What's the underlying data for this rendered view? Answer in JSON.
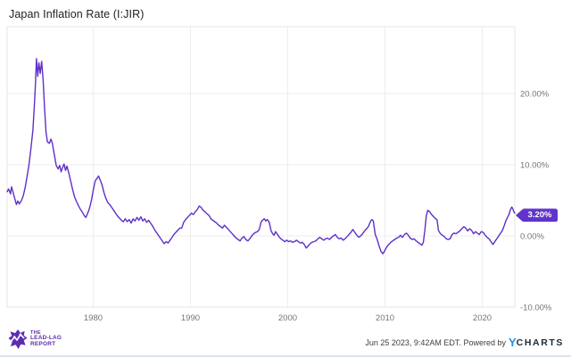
{
  "header": {
    "title": "Japan Inflation Rate (I:JIR)"
  },
  "colors": {
    "line": "#5e30c8",
    "badge_bg": "#6133cc",
    "grid": "#ededed",
    "plot_border": "#e4e4e4",
    "tick_text": "#757575",
    "title_text": "#202124",
    "brand_purple": "#5c2db3",
    "ycharts_blue": "#1e8fea",
    "ycharts_dark": "#1b2b3a",
    "footer_text": "#3d3d3d"
  },
  "chart_data": {
    "type": "line",
    "title": "Japan Inflation Rate (I:JIR)",
    "legend": "none",
    "grid": "on",
    "x_axis": {
      "domain": [
        1971.15,
        2023.35
      ],
      "ticks": [
        1980,
        1990,
        2000,
        2010,
        2020
      ],
      "tick_labels": [
        "1980",
        "1990",
        "2000",
        "2010",
        "2020"
      ]
    },
    "y_axis": {
      "side": "right",
      "domain": [
        -10,
        29.375
      ],
      "ticks": [
        20,
        10,
        0,
        -10
      ],
      "tick_labels": [
        "20.00%",
        "10.00%",
        "0.00%",
        "-10.00%"
      ]
    },
    "last_value_label": "3.20%",
    "series": [
      {
        "name": "Japan Inflation Rate",
        "unit": "percent",
        "points": [
          [
            1971.15,
            6.2
          ],
          [
            1971.3,
            6.6
          ],
          [
            1971.5,
            5.9
          ],
          [
            1971.6,
            6.9
          ],
          [
            1971.75,
            6.2
          ],
          [
            1971.9,
            5.4
          ],
          [
            1972.1,
            4.4
          ],
          [
            1972.25,
            4.9
          ],
          [
            1972.4,
            4.5
          ],
          [
            1972.6,
            4.9
          ],
          [
            1972.8,
            5.6
          ],
          [
            1973.0,
            6.8
          ],
          [
            1973.2,
            8.3
          ],
          [
            1973.4,
            10.0
          ],
          [
            1973.6,
            12.3
          ],
          [
            1973.8,
            14.9
          ],
          [
            1973.95,
            18.3
          ],
          [
            1974.05,
            21.0
          ],
          [
            1974.17,
            24.9
          ],
          [
            1974.3,
            22.4
          ],
          [
            1974.42,
            24.3
          ],
          [
            1974.55,
            22.8
          ],
          [
            1974.7,
            24.5
          ],
          [
            1974.85,
            22.0
          ],
          [
            1975.0,
            17.8
          ],
          [
            1975.15,
            14.5
          ],
          [
            1975.3,
            13.2
          ],
          [
            1975.5,
            13.0
          ],
          [
            1975.65,
            13.6
          ],
          [
            1975.8,
            13.0
          ],
          [
            1976.0,
            11.4
          ],
          [
            1976.2,
            9.9
          ],
          [
            1976.4,
            9.4
          ],
          [
            1976.55,
            9.9
          ],
          [
            1976.7,
            9.0
          ],
          [
            1976.85,
            9.6
          ],
          [
            1977.0,
            10.1
          ],
          [
            1977.15,
            9.2
          ],
          [
            1977.3,
            9.8
          ],
          [
            1977.5,
            8.8
          ],
          [
            1977.7,
            7.6
          ],
          [
            1977.9,
            6.4
          ],
          [
            1978.1,
            5.4
          ],
          [
            1978.3,
            4.8
          ],
          [
            1978.5,
            4.2
          ],
          [
            1978.7,
            3.7
          ],
          [
            1978.9,
            3.3
          ],
          [
            1979.1,
            2.8
          ],
          [
            1979.25,
            2.6
          ],
          [
            1979.4,
            3.1
          ],
          [
            1979.55,
            3.6
          ],
          [
            1979.7,
            4.3
          ],
          [
            1979.85,
            5.2
          ],
          [
            1980.0,
            6.4
          ],
          [
            1980.2,
            7.7
          ],
          [
            1980.4,
            8.1
          ],
          [
            1980.55,
            8.4
          ],
          [
            1980.7,
            7.9
          ],
          [
            1980.9,
            7.2
          ],
          [
            1981.1,
            6.1
          ],
          [
            1981.3,
            5.3
          ],
          [
            1981.5,
            4.7
          ],
          [
            1981.7,
            4.4
          ],
          [
            1981.9,
            4.0
          ],
          [
            1982.1,
            3.6
          ],
          [
            1982.3,
            3.2
          ],
          [
            1982.5,
            2.8
          ],
          [
            1982.7,
            2.5
          ],
          [
            1982.9,
            2.2
          ],
          [
            1983.1,
            2.0
          ],
          [
            1983.3,
            2.4
          ],
          [
            1983.5,
            2.0
          ],
          [
            1983.7,
            2.3
          ],
          [
            1983.9,
            1.8
          ],
          [
            1984.1,
            2.4
          ],
          [
            1984.3,
            2.1
          ],
          [
            1984.5,
            2.6
          ],
          [
            1984.7,
            2.2
          ],
          [
            1984.9,
            2.7
          ],
          [
            1985.1,
            2.1
          ],
          [
            1985.3,
            2.4
          ],
          [
            1985.5,
            1.9
          ],
          [
            1985.7,
            2.2
          ],
          [
            1985.9,
            1.8
          ],
          [
            1986.1,
            1.4
          ],
          [
            1986.3,
            0.9
          ],
          [
            1986.5,
            0.5
          ],
          [
            1986.7,
            0.1
          ],
          [
            1986.9,
            -0.3
          ],
          [
            1987.1,
            -0.7
          ],
          [
            1987.3,
            -1.1
          ],
          [
            1987.5,
            -0.8
          ],
          [
            1987.7,
            -1.0
          ],
          [
            1987.9,
            -0.6
          ],
          [
            1988.1,
            -0.2
          ],
          [
            1988.3,
            0.2
          ],
          [
            1988.5,
            0.5
          ],
          [
            1988.7,
            0.8
          ],
          [
            1988.9,
            1.1
          ],
          [
            1989.1,
            1.1
          ],
          [
            1989.3,
            1.9
          ],
          [
            1989.5,
            2.3
          ],
          [
            1989.7,
            2.6
          ],
          [
            1989.9,
            2.9
          ],
          [
            1990.1,
            3.2
          ],
          [
            1990.3,
            3.0
          ],
          [
            1990.5,
            3.4
          ],
          [
            1990.7,
            3.7
          ],
          [
            1990.9,
            4.2
          ],
          [
            1991.1,
            4.0
          ],
          [
            1991.3,
            3.6
          ],
          [
            1991.5,
            3.4
          ],
          [
            1991.7,
            3.1
          ],
          [
            1991.9,
            2.9
          ],
          [
            1992.1,
            2.4
          ],
          [
            1992.3,
            2.2
          ],
          [
            1992.5,
            2.0
          ],
          [
            1992.7,
            1.8
          ],
          [
            1992.9,
            1.5
          ],
          [
            1993.1,
            1.3
          ],
          [
            1993.3,
            1.1
          ],
          [
            1993.5,
            1.5
          ],
          [
            1993.7,
            1.2
          ],
          [
            1993.9,
            0.9
          ],
          [
            1994.1,
            0.6
          ],
          [
            1994.3,
            0.3
          ],
          [
            1994.5,
            0.0
          ],
          [
            1994.7,
            -0.3
          ],
          [
            1994.9,
            -0.5
          ],
          [
            1995.1,
            -0.7
          ],
          [
            1995.3,
            -0.3
          ],
          [
            1995.5,
            -0.1
          ],
          [
            1995.7,
            -0.5
          ],
          [
            1995.9,
            -0.7
          ],
          [
            1996.1,
            -0.4
          ],
          [
            1996.3,
            0.0
          ],
          [
            1996.5,
            0.3
          ],
          [
            1996.7,
            0.5
          ],
          [
            1996.9,
            0.6
          ],
          [
            1997.1,
            1.0
          ],
          [
            1997.25,
            1.9
          ],
          [
            1997.4,
            2.2
          ],
          [
            1997.6,
            2.4
          ],
          [
            1997.75,
            2.1
          ],
          [
            1997.9,
            2.3
          ],
          [
            1998.1,
            1.9
          ],
          [
            1998.3,
            0.7
          ],
          [
            1998.45,
            0.3
          ],
          [
            1998.6,
            0.1
          ],
          [
            1998.75,
            0.6
          ],
          [
            1998.9,
            0.3
          ],
          [
            1999.1,
            -0.1
          ],
          [
            1999.3,
            -0.4
          ],
          [
            1999.5,
            -0.6
          ],
          [
            1999.7,
            -0.8
          ],
          [
            1999.9,
            -0.6
          ],
          [
            2000.1,
            -0.8
          ],
          [
            2000.3,
            -0.7
          ],
          [
            2000.5,
            -0.9
          ],
          [
            2000.7,
            -0.8
          ],
          [
            2000.9,
            -0.6
          ],
          [
            2001.1,
            -0.8
          ],
          [
            2001.3,
            -1.0
          ],
          [
            2001.5,
            -0.9
          ],
          [
            2001.7,
            -1.2
          ],
          [
            2001.9,
            -1.7
          ],
          [
            2002.1,
            -1.4
          ],
          [
            2002.3,
            -1.1
          ],
          [
            2002.5,
            -0.9
          ],
          [
            2002.7,
            -0.8
          ],
          [
            2002.9,
            -0.7
          ],
          [
            2003.1,
            -0.4
          ],
          [
            2003.3,
            -0.2
          ],
          [
            2003.5,
            -0.4
          ],
          [
            2003.7,
            -0.6
          ],
          [
            2003.9,
            -0.4
          ],
          [
            2004.1,
            -0.3
          ],
          [
            2004.3,
            -0.5
          ],
          [
            2004.5,
            -0.2
          ],
          [
            2004.7,
            0.0
          ],
          [
            2004.9,
            0.2
          ],
          [
            2005.1,
            -0.2
          ],
          [
            2005.3,
            -0.4
          ],
          [
            2005.5,
            -0.3
          ],
          [
            2005.7,
            -0.6
          ],
          [
            2005.9,
            -0.4
          ],
          [
            2006.1,
            -0.1
          ],
          [
            2006.3,
            0.2
          ],
          [
            2006.5,
            0.5
          ],
          [
            2006.7,
            0.9
          ],
          [
            2006.9,
            0.5
          ],
          [
            2007.1,
            0.1
          ],
          [
            2007.3,
            -0.2
          ],
          [
            2007.5,
            0.0
          ],
          [
            2007.7,
            0.3
          ],
          [
            2007.9,
            0.7
          ],
          [
            2008.1,
            1.0
          ],
          [
            2008.3,
            1.3
          ],
          [
            2008.5,
            2.0
          ],
          [
            2008.65,
            2.3
          ],
          [
            2008.8,
            2.1
          ],
          [
            2009.0,
            0.2
          ],
          [
            2009.2,
            -0.5
          ],
          [
            2009.4,
            -1.4
          ],
          [
            2009.6,
            -2.2
          ],
          [
            2009.8,
            -2.5
          ],
          [
            2010.0,
            -2.0
          ],
          [
            2010.2,
            -1.5
          ],
          [
            2010.4,
            -1.2
          ],
          [
            2010.6,
            -0.9
          ],
          [
            2010.8,
            -0.7
          ],
          [
            2011.0,
            -0.5
          ],
          [
            2011.2,
            -0.3
          ],
          [
            2011.4,
            -0.2
          ],
          [
            2011.6,
            0.1
          ],
          [
            2011.8,
            -0.2
          ],
          [
            2012.0,
            0.2
          ],
          [
            2012.2,
            0.4
          ],
          [
            2012.4,
            0.1
          ],
          [
            2012.6,
            -0.3
          ],
          [
            2012.8,
            -0.5
          ],
          [
            2013.0,
            -0.4
          ],
          [
            2013.2,
            -0.7
          ],
          [
            2013.4,
            -0.9
          ],
          [
            2013.6,
            -1.1
          ],
          [
            2013.8,
            -1.3
          ],
          [
            2013.95,
            -0.9
          ],
          [
            2014.1,
            0.8
          ],
          [
            2014.25,
            2.8
          ],
          [
            2014.4,
            3.6
          ],
          [
            2014.6,
            3.4
          ],
          [
            2014.8,
            3.0
          ],
          [
            2015.0,
            2.7
          ],
          [
            2015.2,
            2.4
          ],
          [
            2015.35,
            2.3
          ],
          [
            2015.5,
            0.8
          ],
          [
            2015.7,
            0.3
          ],
          [
            2015.9,
            0.1
          ],
          [
            2016.1,
            -0.1
          ],
          [
            2016.3,
            -0.4
          ],
          [
            2016.5,
            -0.5
          ],
          [
            2016.7,
            -0.4
          ],
          [
            2016.9,
            0.2
          ],
          [
            2017.1,
            0.4
          ],
          [
            2017.3,
            0.3
          ],
          [
            2017.5,
            0.5
          ],
          [
            2017.7,
            0.7
          ],
          [
            2017.9,
            1.0
          ],
          [
            2018.1,
            1.3
          ],
          [
            2018.3,
            1.1
          ],
          [
            2018.5,
            0.7
          ],
          [
            2018.7,
            1.0
          ],
          [
            2018.9,
            0.8
          ],
          [
            2019.1,
            0.3
          ],
          [
            2019.3,
            0.6
          ],
          [
            2019.5,
            0.4
          ],
          [
            2019.7,
            0.2
          ],
          [
            2019.9,
            0.6
          ],
          [
            2020.1,
            0.5
          ],
          [
            2020.3,
            0.1
          ],
          [
            2020.5,
            -0.2
          ],
          [
            2020.7,
            -0.4
          ],
          [
            2020.9,
            -0.8
          ],
          [
            2021.1,
            -1.2
          ],
          [
            2021.25,
            -0.9
          ],
          [
            2021.4,
            -0.6
          ],
          [
            2021.55,
            -0.3
          ],
          [
            2021.7,
            0.0
          ],
          [
            2021.85,
            0.3
          ],
          [
            2022.0,
            0.6
          ],
          [
            2022.15,
            1.0
          ],
          [
            2022.3,
            1.6
          ],
          [
            2022.45,
            2.2
          ],
          [
            2022.6,
            2.6
          ],
          [
            2022.75,
            3.0
          ],
          [
            2022.9,
            3.7
          ],
          [
            2023.05,
            4.05
          ],
          [
            2023.15,
            3.8
          ],
          [
            2023.25,
            3.4
          ],
          [
            2023.35,
            3.2
          ]
        ]
      }
    ]
  },
  "branding": {
    "lines": [
      "THE",
      "LEAD-LAG",
      "REPORT"
    ]
  },
  "footer": {
    "timestamp": "Jun 25 2023, 9:42AM EDT.",
    "powered_by": "Powered by",
    "ycharts_y": "Y",
    "ycharts_rest": "CHARTS"
  }
}
